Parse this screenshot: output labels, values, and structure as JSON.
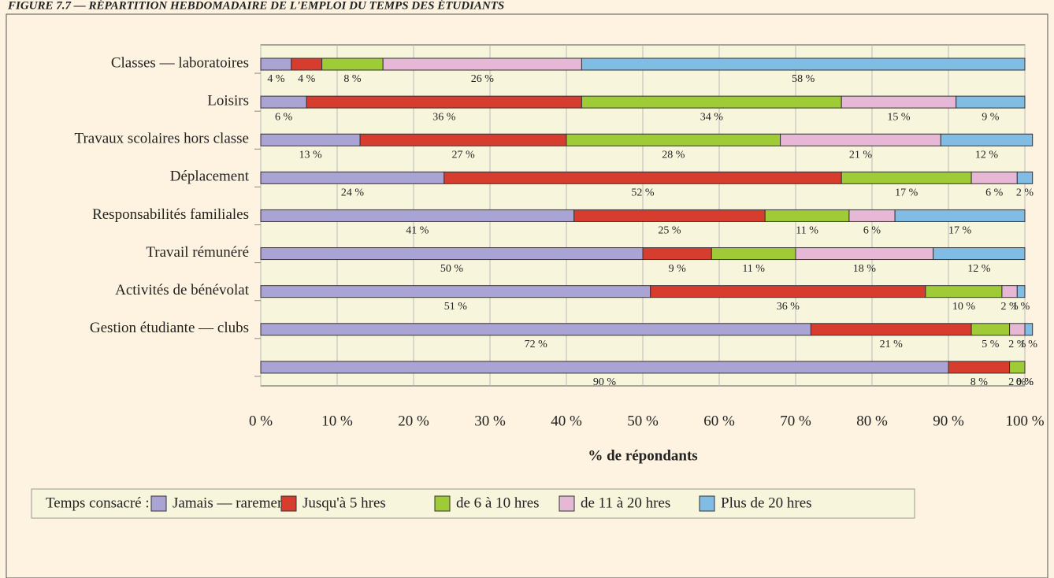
{
  "chart_data": {
    "type": "stacked_bar_horizontal",
    "title": "FIGURE 7.7 — RÉPARTITION HEBDOMADAIRE DE L'EMPLOI DU TEMPS DES ÉTUDIANTS",
    "x_label": "% de répondants",
    "legend_title": "Temps consacré :",
    "categories": [
      "Classes — laboratoires",
      "Loisirs",
      "Travaux scolaires hors classe",
      "Déplacement",
      "Responsabilités familiales",
      "Travail rémunéré",
      "Activités de bénévolat",
      "Gestion étudiante — clubs",
      null
    ],
    "series": [
      {
        "name": "Jamais — rarement",
        "color": "#aaa4d4",
        "values": [
          4,
          6,
          13,
          24,
          41,
          50,
          51,
          72,
          90
        ],
        "value_labels": [
          "4 %",
          "6 %",
          "13 %",
          "24 %",
          "41 %",
          "50 %",
          "51 %",
          "72 %",
          "90 %"
        ]
      },
      {
        "name": "Jusqu'à 5 hres",
        "color": "#d73d2e",
        "values": [
          4,
          36,
          27,
          52,
          25,
          9,
          36,
          21,
          8
        ],
        "value_labels": [
          "4 %",
          "36 %",
          "27 %",
          "52 %",
          "25 %",
          "9 %",
          "36 %",
          "21 %",
          "8 %"
        ]
      },
      {
        "name": "de 6 à 10 hres",
        "color": "#9fcb36",
        "values": [
          8,
          34,
          28,
          17,
          11,
          11,
          10,
          5,
          2
        ],
        "value_labels": [
          "8 %",
          "34 %",
          "28 %",
          "17 %",
          "11 %",
          "11 %",
          "10 %",
          "5 %",
          "2 %"
        ]
      },
      {
        "name": "de 11 à 20 hres",
        "color": "#e7b8d5",
        "values": [
          26,
          15,
          21,
          6,
          6,
          18,
          2,
          2,
          0
        ],
        "value_labels": [
          "26 %",
          "15 %",
          "21 %",
          "6 %",
          "6 %",
          "18 %",
          "2 %",
          "2 %",
          "0 %"
        ]
      },
      {
        "name": "Plus de 20 hres",
        "color": "#80bce4",
        "values": [
          58,
          9,
          12,
          2,
          17,
          12,
          1,
          1,
          0
        ],
        "value_labels": [
          "58 %",
          "9 %",
          "12 %",
          "2 %",
          "17 %",
          "12 %",
          "1 %",
          "1 %",
          "0 %"
        ]
      }
    ],
    "xlim": [
      0,
      100
    ],
    "xticks": [
      {
        "value": 0,
        "label": "0 %"
      },
      {
        "value": 10,
        "label": "10 %"
      },
      {
        "value": 20,
        "label": "20 %"
      },
      {
        "value": 30,
        "label": "30 %"
      },
      {
        "value": 40,
        "label": "40 %"
      },
      {
        "value": 50,
        "label": "50 %"
      },
      {
        "value": 60,
        "label": "60 %"
      },
      {
        "value": 70,
        "label": "70 %"
      },
      {
        "value": 80,
        "label": "80 %"
      },
      {
        "value": 90,
        "label": "90 %"
      },
      {
        "value": 100,
        "label": "100 %"
      }
    ],
    "grid": true
  }
}
